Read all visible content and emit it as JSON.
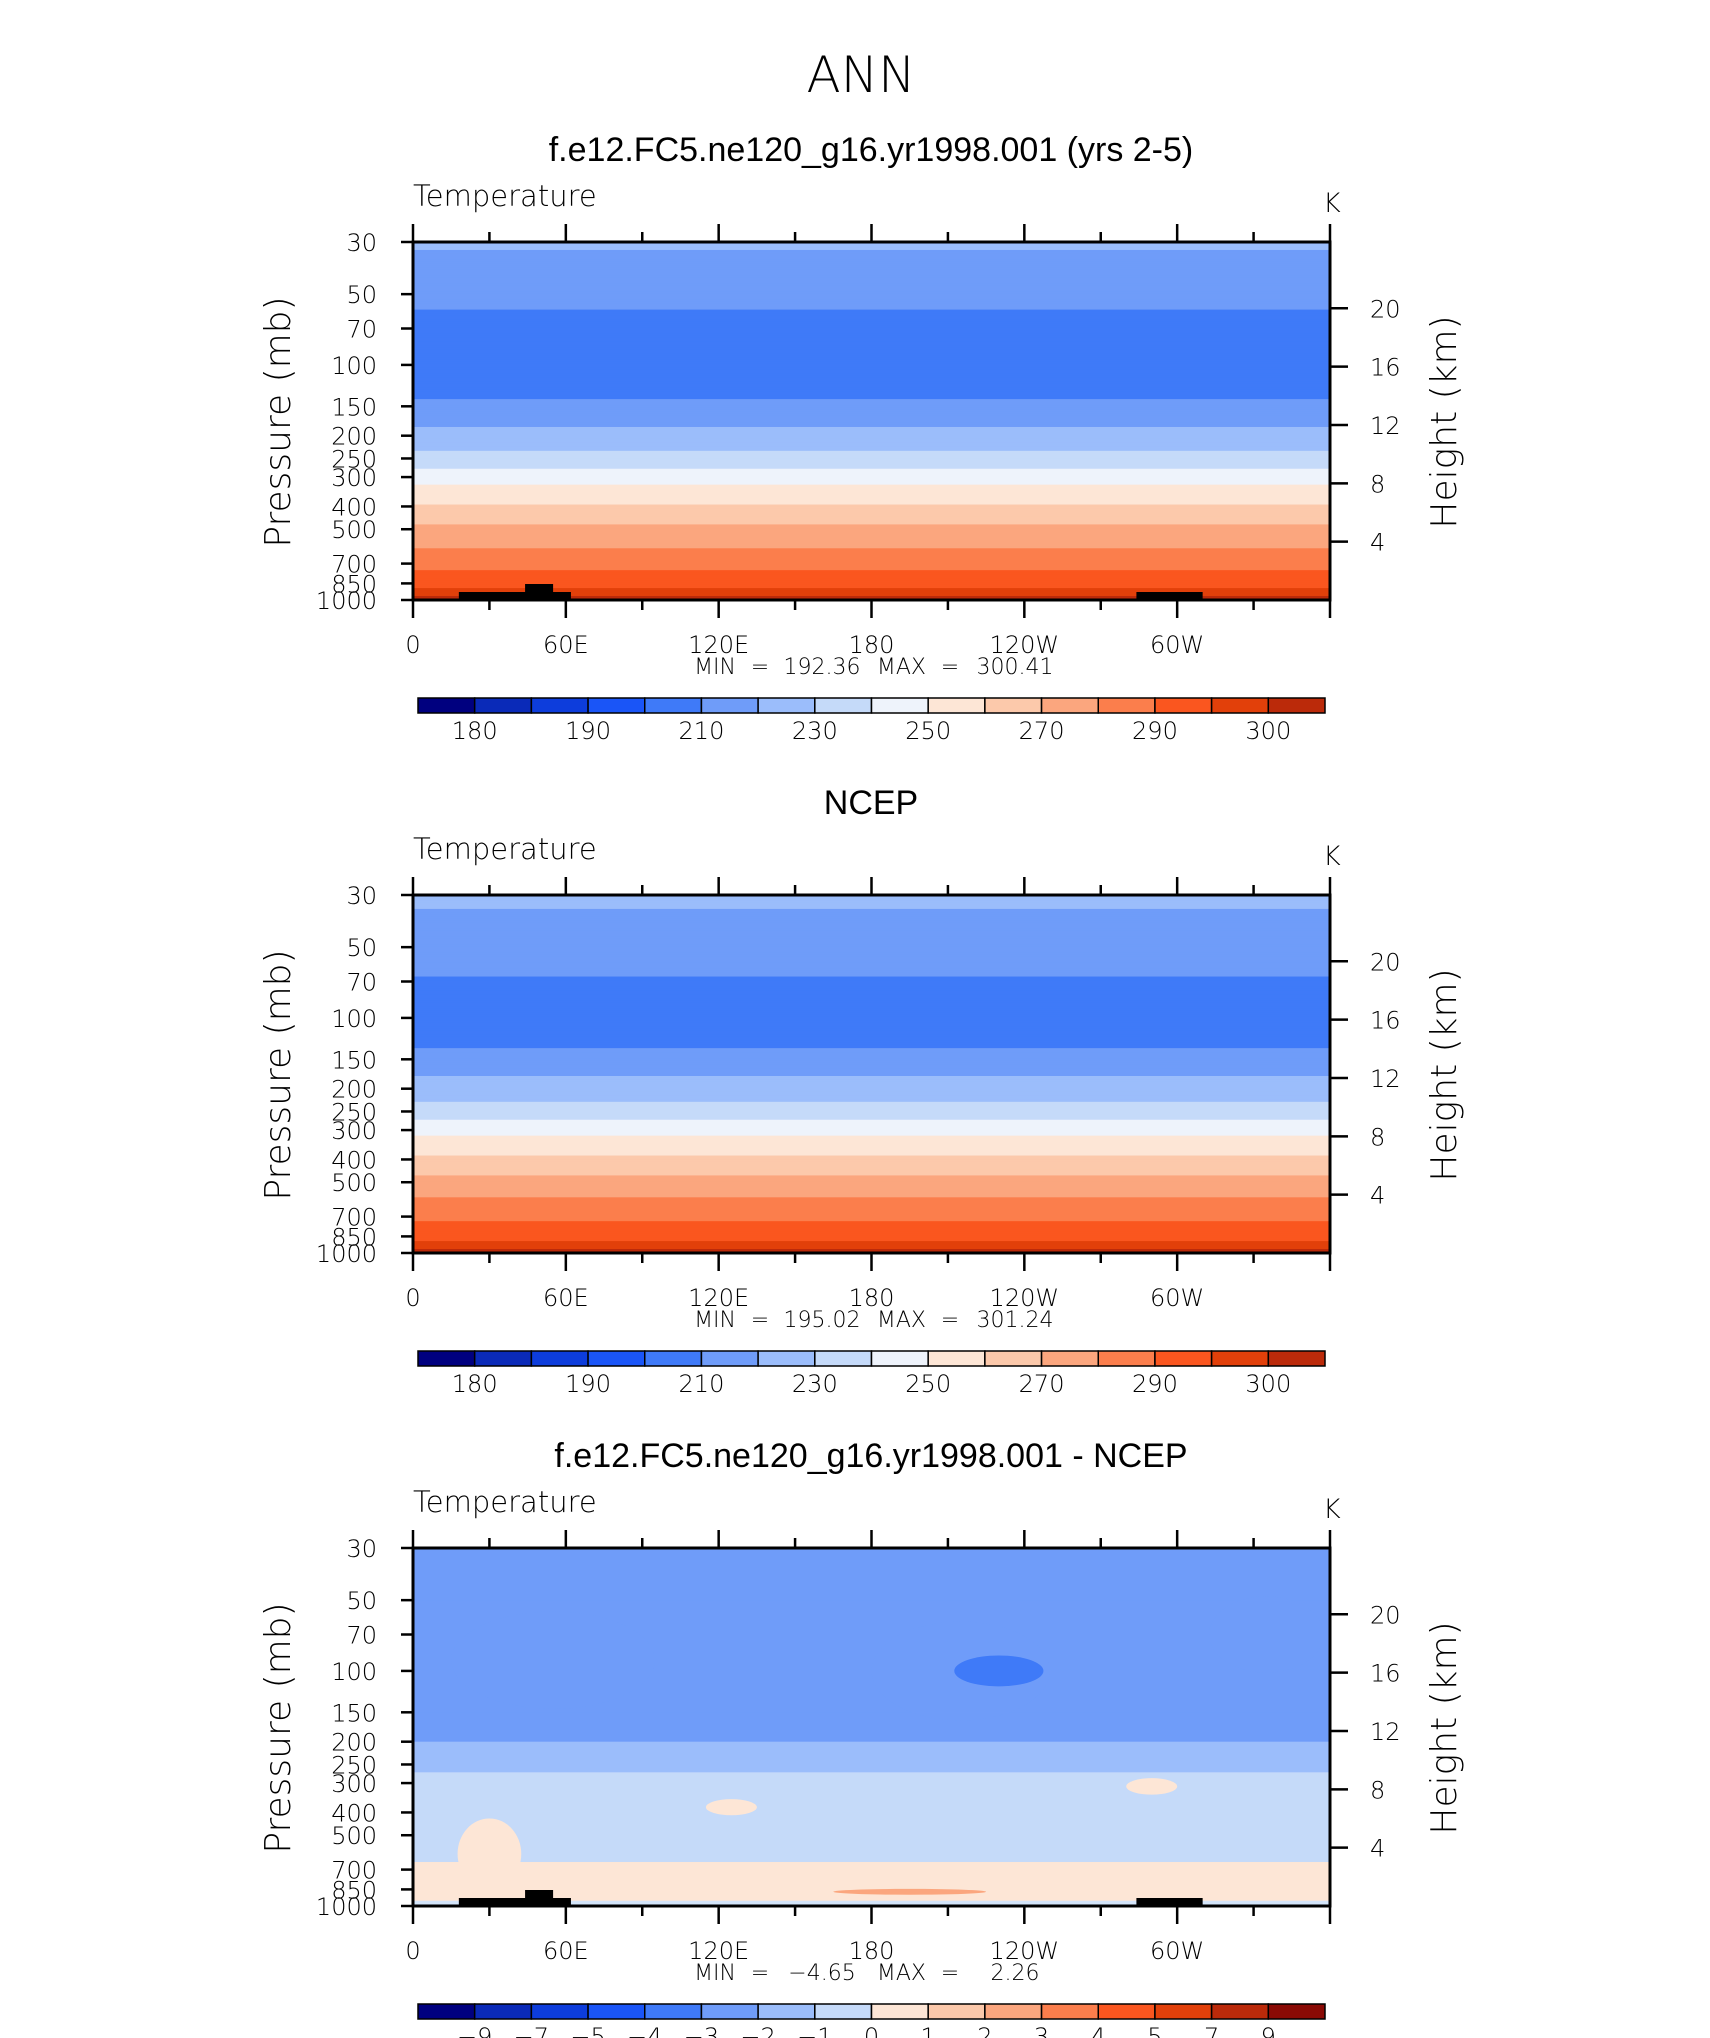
{
  "figure": {
    "title": "ANN"
  },
  "colors": {
    "temp": [
      "#00007f",
      "#0a2ab8",
      "#0d3ddc",
      "#1a55f7",
      "#3f7af8",
      "#6f9cf9",
      "#9bbdfb",
      "#c5daf9",
      "#eef3fb",
      "#fde6d6",
      "#fcc9ab",
      "#fba67e",
      "#fb7e4c",
      "#fa561f",
      "#e2400a",
      "#bb2a0a",
      "#8a0a05"
    ],
    "diff": [
      "#00007f",
      "#0a2ab8",
      "#0d3ddc",
      "#1a55f7",
      "#3f7af8",
      "#6f9cf9",
      "#9bbdfb",
      "#c5daf9",
      "#d4e5fa",
      "#fde6d6",
      "#fcc9ab",
      "#fba67e",
      "#fb7e4c",
      "#fa561f",
      "#e2400a",
      "#bb2a0a",
      "#8a0a05"
    ]
  },
  "chart_data": [
    {
      "type": "heatmap",
      "title": "f.e12.FC5.ne120_g16.yr1998.001 (yrs 2-5)",
      "variable": "Temperature",
      "units": "K",
      "ylabel_left": "Pressure (mb)",
      "ylabel_right": "Height (km)",
      "x_ticks": [
        "0",
        "60E",
        "120E",
        "180",
        "120W",
        "60W"
      ],
      "y_ticks_left": [
        "30",
        "50",
        "70",
        "100",
        "150",
        "200",
        "250",
        "300",
        "400",
        "500",
        "700",
        "850",
        "1000"
      ],
      "y_ticks_right": [
        "20",
        "16",
        "12",
        "8",
        "4"
      ],
      "stats": {
        "min_label": "MIN",
        "min": "192.36",
        "max_label": "MAX",
        "max": "300.41"
      },
      "colorbar_labels": [
        "180",
        "190",
        "210",
        "230",
        "250",
        "270",
        "290",
        "300"
      ],
      "levels": [
        175,
        180,
        185,
        190,
        200,
        210,
        220,
        230,
        240,
        250,
        260,
        270,
        280,
        290,
        295,
        300
      ],
      "profile": [
        {
          "p": 30,
          "t": 211
        },
        {
          "p": 40,
          "t": 207
        },
        {
          "p": 50,
          "t": 204
        },
        {
          "p": 60,
          "t": 199
        },
        {
          "p": 70,
          "t": 197
        },
        {
          "p": 100,
          "t": 196
        },
        {
          "p": 130,
          "t": 197
        },
        {
          "p": 150,
          "t": 203
        },
        {
          "p": 200,
          "t": 213
        },
        {
          "p": 250,
          "t": 224
        },
        {
          "p": 300,
          "t": 236
        },
        {
          "p": 400,
          "t": 251
        },
        {
          "p": 500,
          "t": 262
        },
        {
          "p": 700,
          "t": 277
        },
        {
          "p": 850,
          "t": 287
        },
        {
          "p": 950,
          "t": 294
        },
        {
          "p": 1000,
          "t": 298
        }
      ],
      "topography": true
    },
    {
      "type": "heatmap",
      "title": "NCEP",
      "variable": "Temperature",
      "units": "K",
      "ylabel_left": "Pressure (mb)",
      "ylabel_right": "Height (km)",
      "x_ticks": [
        "0",
        "60E",
        "120E",
        "180",
        "120W",
        "60W"
      ],
      "y_ticks_left": [
        "30",
        "50",
        "70",
        "100",
        "150",
        "200",
        "250",
        "300",
        "400",
        "500",
        "700",
        "850",
        "1000"
      ],
      "y_ticks_right": [
        "20",
        "16",
        "12",
        "8",
        "4"
      ],
      "stats": {
        "min_label": "MIN",
        "min": "195.02",
        "max_label": "MAX",
        "max": "301.24"
      },
      "colorbar_labels": [
        "180",
        "190",
        "210",
        "230",
        "250",
        "270",
        "290",
        "300"
      ],
      "levels": [
        175,
        180,
        185,
        190,
        200,
        210,
        220,
        230,
        240,
        250,
        260,
        270,
        280,
        290,
        295,
        300
      ],
      "profile": [
        {
          "p": 30,
          "t": 212
        },
        {
          "p": 40,
          "t": 208
        },
        {
          "p": 50,
          "t": 204
        },
        {
          "p": 60,
          "t": 202
        },
        {
          "p": 70,
          "t": 199
        },
        {
          "p": 100,
          "t": 198
        },
        {
          "p": 130,
          "t": 199
        },
        {
          "p": 150,
          "t": 204
        },
        {
          "p": 200,
          "t": 214
        },
        {
          "p": 250,
          "t": 225
        },
        {
          "p": 300,
          "t": 237
        },
        {
          "p": 400,
          "t": 252
        },
        {
          "p": 500,
          "t": 263
        },
        {
          "p": 700,
          "t": 278
        },
        {
          "p": 850,
          "t": 287
        },
        {
          "p": 950,
          "t": 294
        },
        {
          "p": 1000,
          "t": 299
        }
      ],
      "topography": false
    },
    {
      "type": "heatmap",
      "title": "f.e12.FC5.ne120_g16.yr1998.001 - NCEP",
      "variable": "Temperature",
      "units": "K",
      "ylabel_left": "Pressure (mb)",
      "ylabel_right": "Height (km)",
      "x_ticks": [
        "0",
        "60E",
        "120E",
        "180",
        "120W",
        "60W"
      ],
      "y_ticks_left": [
        "30",
        "50",
        "70",
        "100",
        "150",
        "200",
        "250",
        "300",
        "400",
        "500",
        "700",
        "850",
        "1000"
      ],
      "y_ticks_right": [
        "20",
        "16",
        "12",
        "8",
        "4"
      ],
      "stats": {
        "min_label": "MIN",
        "min": "−4.65",
        "max_label": "MAX",
        "max": "2.26"
      },
      "colorbar_labels": [
        "−9",
        "−7",
        "−5",
        "−4",
        "−3",
        "−2",
        "−1",
        "0",
        "1",
        "2",
        "3",
        "4",
        "5",
        "7",
        "9"
      ],
      "levels": [
        -9,
        -7,
        -5,
        -4,
        -3,
        -2,
        -1,
        -0.5,
        0,
        0.5,
        1,
        2,
        3,
        4,
        5,
        7,
        9
      ],
      "bands": [
        {
          "p_top": 30,
          "p_bottom": 50,
          "value": -2.5
        },
        {
          "p_top": 50,
          "p_bottom": 150,
          "value": -3
        },
        {
          "p_top": 150,
          "p_bottom": 200,
          "value": -2.5
        },
        {
          "p_top": 200,
          "p_bottom": 270,
          "value": -1.5
        },
        {
          "p_top": 270,
          "p_bottom": 650,
          "value": -0.7
        },
        {
          "p_top": 650,
          "p_bottom": 950,
          "value": 0.3
        },
        {
          "p_top": 950,
          "p_bottom": 1000,
          "value": -0.3
        }
      ],
      "patches": [
        {
          "lon": 55,
          "p": 90,
          "dlon": 80,
          "dp": 40,
          "value": -3
        },
        {
          "lon": 215,
          "p": 100,
          "dlon": 70,
          "dp": 45,
          "value": -3
        },
        {
          "lon": 230,
          "p": 100,
          "dlon": 35,
          "dp": 15,
          "value": -4
        },
        {
          "lon": 335,
          "p": 70,
          "dlon": 45,
          "dp": 25,
          "value": -3
        },
        {
          "lon": 195,
          "p": 870,
          "dlon": 60,
          "dp": 25,
          "value": 1.5
        },
        {
          "lon": 125,
          "p": 380,
          "dlon": 20,
          "dp": 30,
          "value": 0.4
        },
        {
          "lon": 290,
          "p": 310,
          "dlon": 20,
          "dp": 25,
          "value": 0.4
        },
        {
          "lon": 30,
          "p": 600,
          "dlon": 25,
          "dp": 200,
          "value": 0.4
        }
      ],
      "topography": true
    }
  ]
}
